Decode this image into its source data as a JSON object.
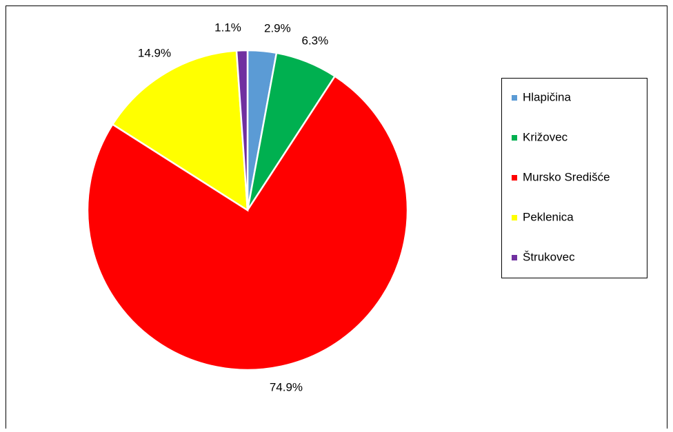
{
  "chart_data": {
    "type": "pie",
    "categories": [
      "Hlapičina",
      "Križovec",
      "Mursko Središće",
      "Peklenica",
      "Štrukovec"
    ],
    "values": [
      2.9,
      6.3,
      74.9,
      14.9,
      1.1
    ],
    "value_labels": [
      "2.9%",
      "6.3%",
      "74.9%",
      "14.9%",
      "1.1%"
    ],
    "colors": [
      "#5b9bd5",
      "#00b050",
      "#ff0000",
      "#ffff00",
      "#7030a0"
    ],
    "legend": "right"
  }
}
